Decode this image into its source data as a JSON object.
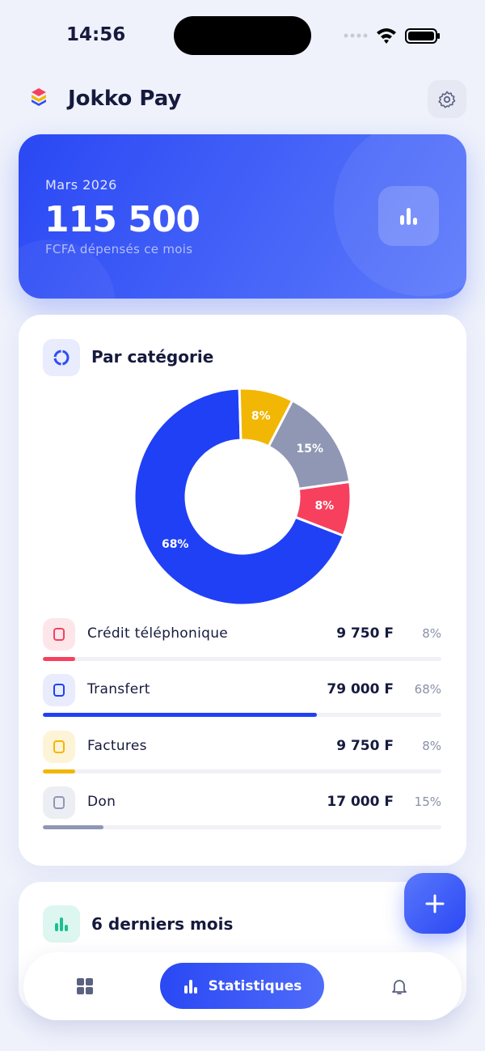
{
  "status_bar": {
    "time": "14:56"
  },
  "header": {
    "app_name": "Jokko Pay"
  },
  "summary": {
    "period": "Mars 2026",
    "amount": "115 500",
    "caption": "FCFA dépensés ce mois"
  },
  "category_card": {
    "title": "Par catégorie",
    "items": [
      {
        "name": "Crédit téléphonique",
        "amount": "9 750 F"
      },
      {
        "name": "Transfert",
        "amount": "79 000 F"
      },
      {
        "name": "Factures",
        "amount": "9 750 F"
      },
      {
        "name": "Don",
        "amount": "17 000 F"
      }
    ]
  },
  "chart_data": {
    "type": "pie",
    "categories": [
      "Crédit téléphonique",
      "Transfert",
      "Factures",
      "Don"
    ],
    "values": [
      8,
      68,
      8,
      15
    ],
    "value_labels": [
      "8%",
      "68%",
      "8%",
      "15%"
    ],
    "colors": [
      "#f6405e",
      "#2040f5",
      "#f2b705",
      "#8f97b4"
    ]
  },
  "history_card": {
    "title": "6 derniers mois"
  },
  "nav": {
    "active": "Statistiques"
  }
}
